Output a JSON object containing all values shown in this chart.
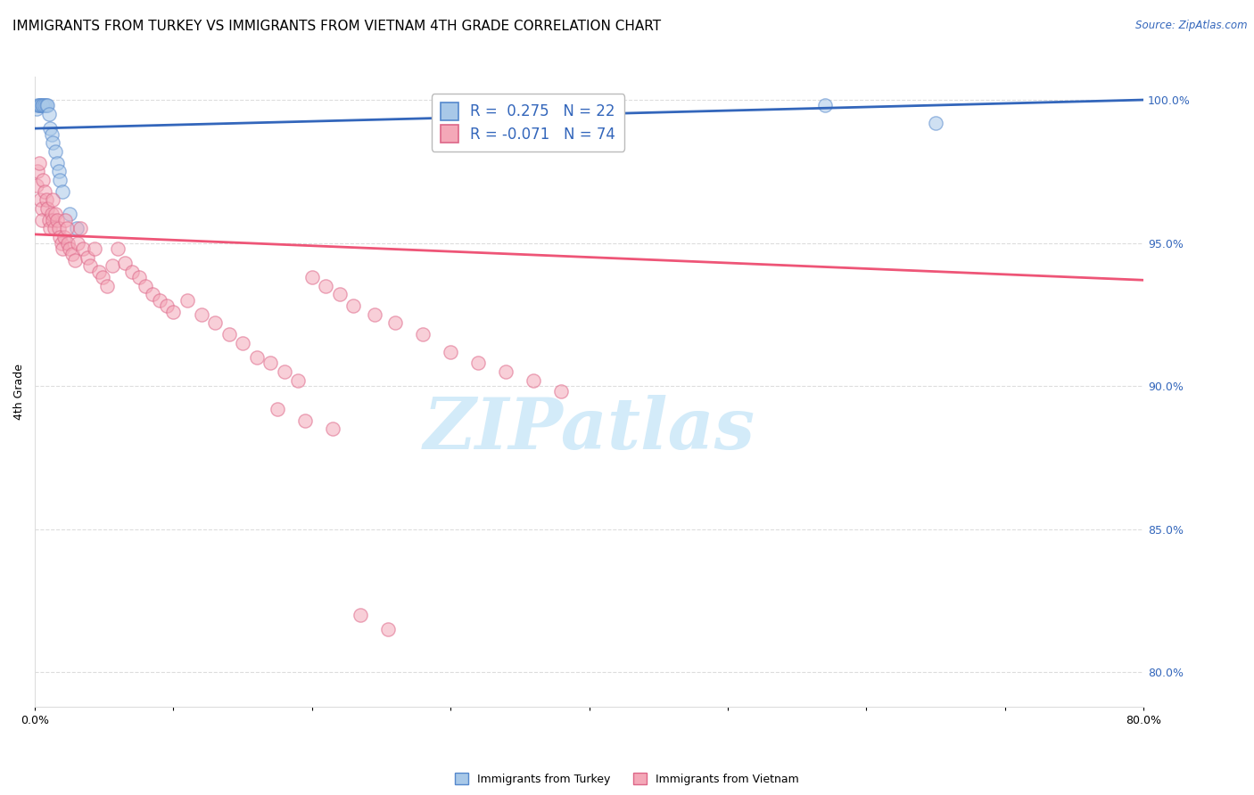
{
  "title": "IMMIGRANTS FROM TURKEY VS IMMIGRANTS FROM VIETNAM 4TH GRADE CORRELATION CHART",
  "source": "Source: ZipAtlas.com",
  "ylabel": "4th Grade",
  "xlim": [
    0.0,
    0.8
  ],
  "ylim": [
    0.788,
    1.008
  ],
  "yticks": [
    0.8,
    0.85,
    0.9,
    0.95,
    1.0
  ],
  "ytick_labels": [
    "80.0%",
    "85.0%",
    "90.0%",
    "95.0%",
    "100.0%"
  ],
  "xticks": [
    0.0,
    0.1,
    0.2,
    0.3,
    0.4,
    0.5,
    0.6,
    0.7,
    0.8
  ],
  "xtick_labels": [
    "0.0%",
    "",
    "",
    "",
    "",
    "",
    "",
    "",
    "80.0%"
  ],
  "turkey_color": "#a8c8e8",
  "vietnam_color": "#f4a8b8",
  "turkey_edge": "#5588cc",
  "vietnam_edge": "#dd6688",
  "trendline_turkey_color": "#3366bb",
  "trendline_vietnam_color": "#ee5577",
  "R_turkey": 0.275,
  "N_turkey": 22,
  "R_vietnam": -0.071,
  "N_vietnam": 74,
  "turkey_x": [
    0.001,
    0.002,
    0.003,
    0.004,
    0.005,
    0.006,
    0.007,
    0.008,
    0.009,
    0.01,
    0.011,
    0.012,
    0.013,
    0.015,
    0.016,
    0.017,
    0.018,
    0.02,
    0.025,
    0.03,
    0.57,
    0.65
  ],
  "turkey_y": [
    0.997,
    0.998,
    0.998,
    0.998,
    0.998,
    0.998,
    0.998,
    0.998,
    0.998,
    0.995,
    0.99,
    0.988,
    0.985,
    0.982,
    0.978,
    0.975,
    0.972,
    0.968,
    0.96,
    0.955,
    0.998,
    0.992
  ],
  "vietnam_x": [
    0.001,
    0.002,
    0.003,
    0.004,
    0.005,
    0.005,
    0.006,
    0.007,
    0.008,
    0.009,
    0.01,
    0.011,
    0.012,
    0.013,
    0.013,
    0.014,
    0.015,
    0.016,
    0.017,
    0.018,
    0.019,
    0.02,
    0.021,
    0.022,
    0.023,
    0.024,
    0.025,
    0.027,
    0.029,
    0.031,
    0.033,
    0.035,
    0.038,
    0.04,
    0.043,
    0.046,
    0.049,
    0.052,
    0.056,
    0.06,
    0.065,
    0.07,
    0.075,
    0.08,
    0.085,
    0.09,
    0.095,
    0.1,
    0.11,
    0.12,
    0.13,
    0.14,
    0.15,
    0.16,
    0.17,
    0.18,
    0.19,
    0.2,
    0.21,
    0.22,
    0.23,
    0.245,
    0.26,
    0.28,
    0.3,
    0.32,
    0.34,
    0.36,
    0.38,
    0.175,
    0.195,
    0.215,
    0.235,
    0.255
  ],
  "vietnam_y": [
    0.97,
    0.975,
    0.978,
    0.965,
    0.962,
    0.958,
    0.972,
    0.968,
    0.965,
    0.962,
    0.958,
    0.955,
    0.96,
    0.965,
    0.958,
    0.955,
    0.96,
    0.958,
    0.955,
    0.952,
    0.95,
    0.948,
    0.952,
    0.958,
    0.955,
    0.95,
    0.948,
    0.946,
    0.944,
    0.95,
    0.955,
    0.948,
    0.945,
    0.942,
    0.948,
    0.94,
    0.938,
    0.935,
    0.942,
    0.948,
    0.943,
    0.94,
    0.938,
    0.935,
    0.932,
    0.93,
    0.928,
    0.926,
    0.93,
    0.925,
    0.922,
    0.918,
    0.915,
    0.91,
    0.908,
    0.905,
    0.902,
    0.938,
    0.935,
    0.932,
    0.928,
    0.925,
    0.922,
    0.918,
    0.912,
    0.908,
    0.905,
    0.902,
    0.898,
    0.892,
    0.888,
    0.885,
    0.82,
    0.815
  ],
  "watermark_text": "ZIPatlas",
  "watermark_color": "#cce8f8",
  "background_color": "#ffffff",
  "grid_color": "#dddddd",
  "title_fontsize": 11,
  "axis_label_fontsize": 9,
  "tick_fontsize": 9,
  "legend_fontsize": 12,
  "marker_size": 11,
  "marker_alpha": 0.55,
  "trendline_lw": 2.0
}
